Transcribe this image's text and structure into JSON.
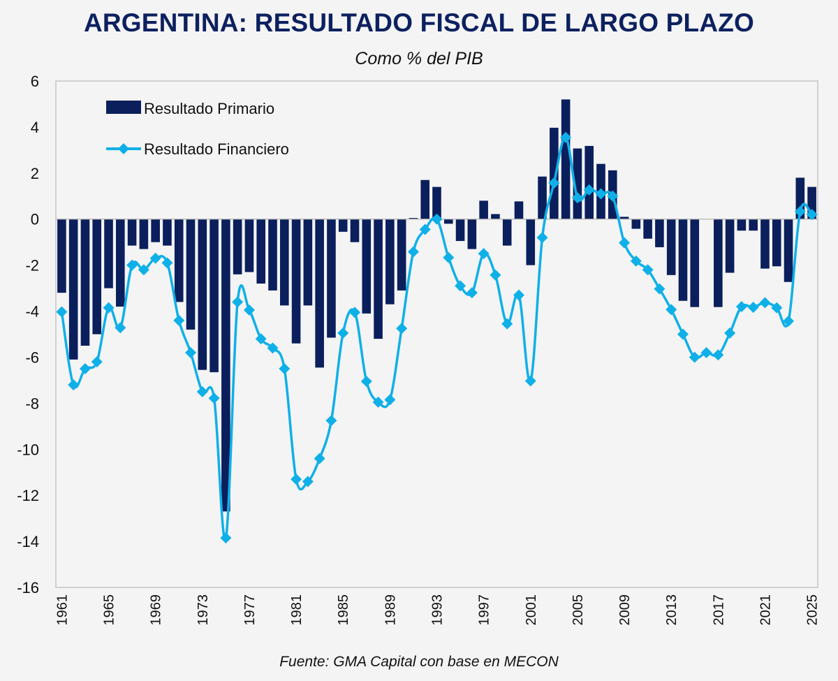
{
  "header": {
    "title": "ARGENTINA: RESULTADO FISCAL DE LARGO PLAZO",
    "subtitle": "Como % del PIB"
  },
  "footer": {
    "source": "Fuente: GMA Capital con base en MECON"
  },
  "colors": {
    "bar": "#0a1f5c",
    "line": "#0fb0e8",
    "background": "#f4f4f4",
    "title": "#0d2160"
  },
  "chart_data": {
    "type": "bar",
    "title": "ARGENTINA: RESULTADO FISCAL DE LARGO PLAZO",
    "subtitle": "Como % del PIB",
    "xlabel": "",
    "ylabel": "",
    "ylim": [
      -16,
      6
    ],
    "yticks": [
      6,
      4,
      2,
      0,
      -2,
      -4,
      -6,
      -8,
      -10,
      -12,
      -14,
      -16
    ],
    "xtick_labels": [
      "1961",
      "1965",
      "1969",
      "1973",
      "1977",
      "1981",
      "1985",
      "1989",
      "1993",
      "1997",
      "2001",
      "2005",
      "2009",
      "2013",
      "2017",
      "2021",
      "2025"
    ],
    "grid": false,
    "legend_position": "top-left",
    "categories": [
      1961,
      1962,
      1963,
      1964,
      1965,
      1966,
      1967,
      1968,
      1969,
      1970,
      1971,
      1972,
      1973,
      1974,
      1975,
      1976,
      1977,
      1978,
      1979,
      1980,
      1981,
      1982,
      1983,
      1984,
      1985,
      1986,
      1987,
      1988,
      1989,
      1990,
      1991,
      1992,
      1993,
      1994,
      1995,
      1996,
      1997,
      1998,
      1999,
      2000,
      2001,
      2002,
      2003,
      2004,
      2005,
      2006,
      2007,
      2008,
      2009,
      2010,
      2011,
      2012,
      2013,
      2014,
      2015,
      2016,
      2017,
      2018,
      2019,
      2020,
      2021,
      2022,
      2023,
      2024,
      2025
    ],
    "series": [
      {
        "name": "Resultado Primario",
        "type": "bar",
        "values": [
          -3.2,
          -6.1,
          -5.5,
          -5.0,
          -3.0,
          -3.8,
          -1.15,
          -1.3,
          -1.0,
          -1.15,
          -3.6,
          -4.8,
          -6.55,
          -6.65,
          -12.7,
          -2.4,
          -2.3,
          -2.8,
          -3.1,
          -3.75,
          -5.4,
          -3.75,
          -6.45,
          -5.15,
          -0.55,
          -1.0,
          -4.1,
          -5.2,
          -3.7,
          -3.1,
          0.05,
          1.7,
          1.4,
          -0.2,
          -0.95,
          -1.3,
          0.8,
          0.22,
          -1.15,
          0.77,
          -2.0,
          1.85,
          3.97,
          5.2,
          3.07,
          3.18,
          2.4,
          2.12,
          0.1,
          -0.42,
          -0.85,
          -1.22,
          -2.43,
          -3.55,
          -3.82,
          0.0,
          -3.82,
          -2.33,
          -0.5,
          -0.5,
          -2.15,
          -2.05,
          -2.73,
          1.8,
          1.4
        ]
      },
      {
        "name": "Resultado Financiero",
        "type": "line",
        "values": [
          -4.03,
          -7.2,
          -6.5,
          -6.2,
          -3.85,
          -4.72,
          -2.0,
          -2.2,
          -1.7,
          -1.9,
          -4.4,
          -5.8,
          -7.5,
          -7.78,
          -13.85,
          -3.6,
          -3.95,
          -5.2,
          -5.6,
          -6.5,
          -11.3,
          -11.4,
          -10.4,
          -8.75,
          -4.95,
          -4.05,
          -7.05,
          -7.95,
          -7.85,
          -4.75,
          -1.42,
          -0.45,
          0.0,
          -1.67,
          -2.9,
          -3.2,
          -1.5,
          -2.43,
          -4.55,
          -3.3,
          -7.03,
          -0.8,
          1.57,
          3.55,
          0.93,
          1.27,
          1.1,
          1.0,
          -1.03,
          -1.82,
          -2.2,
          -3.03,
          -3.93,
          -5.0,
          -6.0,
          -5.8,
          -5.9,
          -4.95,
          -3.8,
          -3.83,
          -3.63,
          -3.85,
          -4.43,
          0.33,
          0.2
        ]
      }
    ]
  }
}
